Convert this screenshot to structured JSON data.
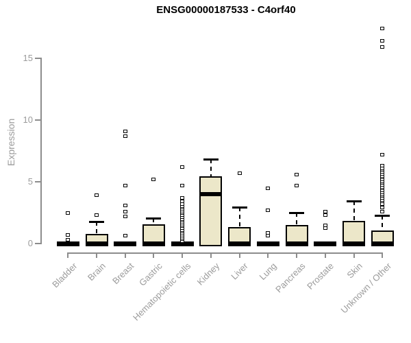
{
  "title": "ENSG00000187533 - C4orf40",
  "y_axis": {
    "label": "Expression"
  },
  "colors": {
    "box_fill": "#ece7c9",
    "box_border": "#000000",
    "median": "#000000",
    "axis": "#8c8c8c",
    "tick_label": "#9b9b9b",
    "title": "#000000",
    "background": "#ffffff"
  },
  "chart_data": {
    "type": "boxplot",
    "title": "ENSG00000187533 - C4orf40",
    "xlabel": "",
    "ylabel": "Expression",
    "ylim": [
      0,
      17.8
    ],
    "yticks": [
      0,
      5,
      10,
      15
    ],
    "grid": false,
    "legend": false,
    "categories": [
      "Bladder",
      "Brain",
      "Breast",
      "Gastric",
      "Hematopoietic cells",
      "Kidney",
      "Liver",
      "Lung",
      "Pancreas",
      "Prostate",
      "Skin",
      "Unknown / Other"
    ],
    "series": [
      {
        "name": "Bladder",
        "flat": true,
        "q1": 0,
        "median": 0,
        "q3": 0,
        "whisker_high": 0,
        "outliers": [
          2.5,
          0.7,
          0.3
        ]
      },
      {
        "name": "Brain",
        "flat": false,
        "q1": 0,
        "median": 0,
        "q3": 0.75,
        "whisker_high": 1.8,
        "outliers": [
          3.9,
          2.3
        ]
      },
      {
        "name": "Breast",
        "flat": true,
        "q1": 0,
        "median": 0,
        "q3": 0,
        "whisker_high": 0,
        "outliers": [
          9.1,
          8.7,
          4.7,
          3.1,
          2.6,
          2.2,
          0.65
        ]
      },
      {
        "name": "Gastric",
        "flat": false,
        "q1": 0,
        "median": 0,
        "q3": 1.5,
        "whisker_high": 2.05,
        "outliers": [
          5.2
        ]
      },
      {
        "name": "Hematopoietic cells",
        "flat": true,
        "q1": 0,
        "median": 0,
        "q3": 0,
        "whisker_high": 0,
        "outliers": [
          0.2,
          0.35,
          0.5,
          0.65,
          0.8,
          0.95,
          1.1,
          1.25,
          1.4,
          1.55,
          1.7,
          1.85,
          2.0,
          2.15,
          2.3,
          2.45,
          2.6,
          2.75,
          2.9,
          3.05,
          3.2,
          3.4,
          3.7,
          4.7,
          6.2
        ]
      },
      {
        "name": "Kidney",
        "flat": false,
        "q1": 0,
        "median": 4.0,
        "q3": 5.4,
        "whisker_high": 6.85,
        "outliers": []
      },
      {
        "name": "Liver",
        "flat": false,
        "q1": 0,
        "median": 0,
        "q3": 1.3,
        "whisker_high": 2.95,
        "outliers": [
          5.7
        ]
      },
      {
        "name": "Lung",
        "flat": true,
        "q1": 0,
        "median": 0,
        "q3": 0,
        "whisker_high": 0,
        "outliers": [
          4.5,
          2.7,
          0.85,
          0.65
        ]
      },
      {
        "name": "Pancreas",
        "flat": false,
        "q1": 0,
        "median": 0,
        "q3": 1.45,
        "whisker_high": 2.5,
        "outliers": [
          5.6,
          4.7
        ]
      },
      {
        "name": "Prostate",
        "flat": true,
        "q1": 0,
        "median": 0,
        "q3": 0,
        "whisker_high": 0,
        "outliers": [
          2.6,
          2.3,
          1.45,
          1.25
        ]
      },
      {
        "name": "Skin",
        "flat": false,
        "q1": 0,
        "median": 0,
        "q3": 1.8,
        "whisker_high": 3.45,
        "outliers": []
      },
      {
        "name": "Unknown / Other",
        "flat": false,
        "q1": 0,
        "median": 0,
        "q3": 1.0,
        "whisker_high": 2.3,
        "outliers": [
          2.6,
          2.9,
          3.2,
          3.4,
          3.55,
          3.7,
          3.85,
          4.0,
          4.15,
          4.3,
          4.45,
          4.6,
          4.75,
          4.9,
          5.05,
          5.2,
          5.35,
          5.5,
          5.65,
          5.8,
          5.95,
          6.1,
          6.3,
          7.2,
          15.9,
          16.4,
          17.4
        ]
      }
    ]
  }
}
